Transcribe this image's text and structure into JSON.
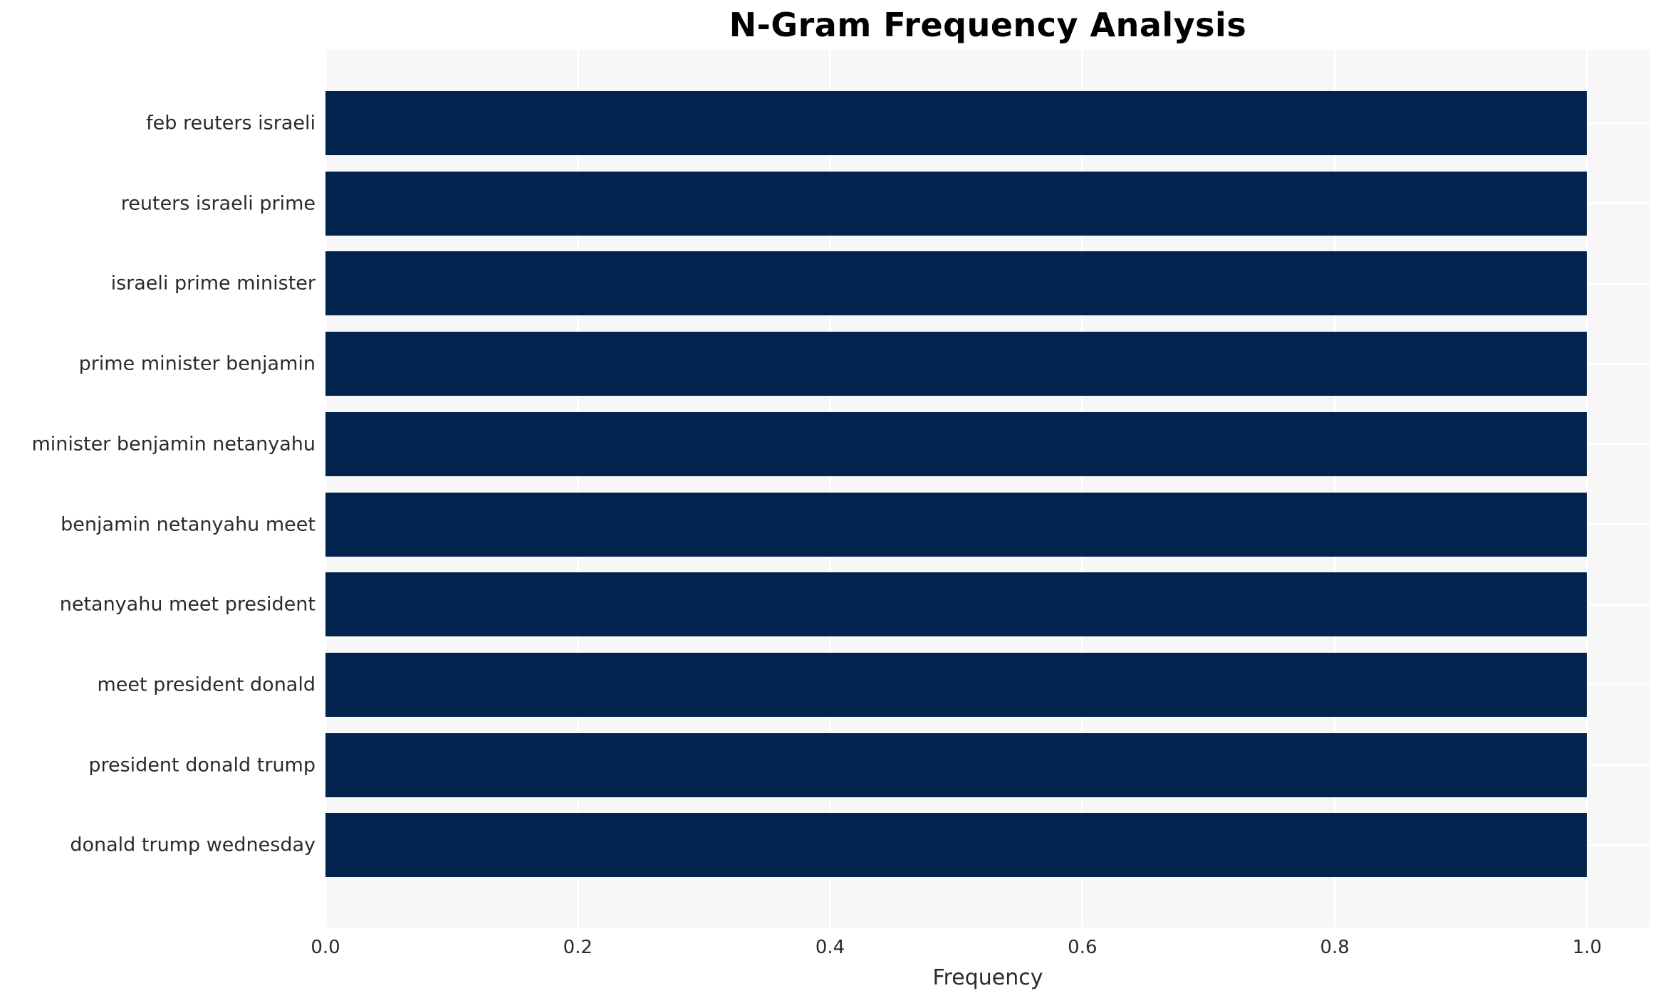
{
  "chart_data": {
    "type": "bar",
    "orientation": "horizontal",
    "title": "N-Gram Frequency Analysis",
    "xlabel": "Frequency",
    "ylabel": "",
    "categories": [
      "feb reuters israeli",
      "reuters israeli prime",
      "israeli prime minister",
      "prime minister benjamin",
      "minister benjamin netanyahu",
      "benjamin netanyahu meet",
      "netanyahu meet president",
      "meet president donald",
      "president donald trump",
      "donald trump wednesday"
    ],
    "values": [
      1.0,
      1.0,
      1.0,
      1.0,
      1.0,
      1.0,
      1.0,
      1.0,
      1.0,
      1.0
    ],
    "xlim": [
      0,
      1.05
    ],
    "xticks": [
      0.0,
      0.2,
      0.4,
      0.6,
      0.8,
      1.0
    ],
    "xtick_labels": [
      "0.0",
      "0.2",
      "0.4",
      "0.6",
      "0.8",
      "1.0"
    ],
    "grid": true,
    "legend": false,
    "colors": {
      "bar": "#02234d",
      "plot_background": "#f7f7f7",
      "grid_line": "#ffffff",
      "text": "#2b2b2b",
      "title_text": "#000000",
      "page_background": "#ffffff"
    }
  }
}
